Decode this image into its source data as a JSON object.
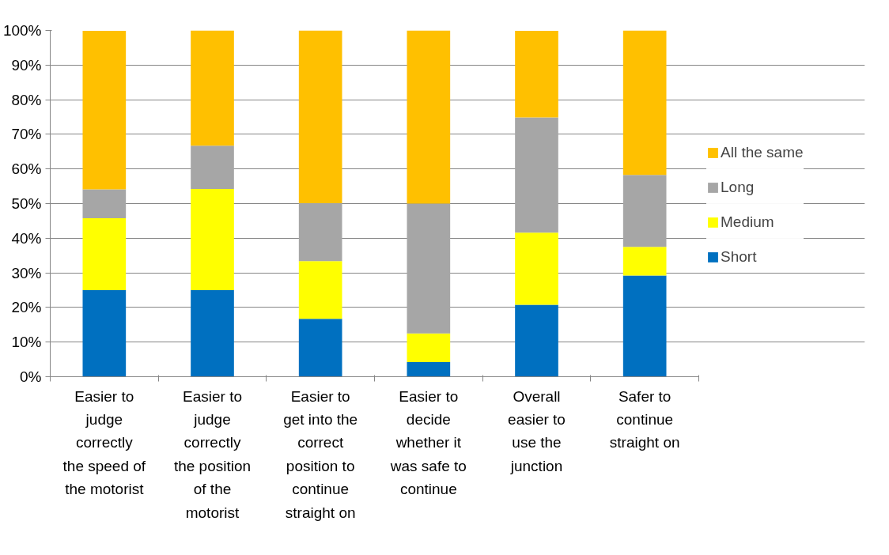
{
  "chart_data": {
    "type": "bar",
    "stacked": true,
    "categories": [
      "Easier to judge correctly the speed of the motorist",
      "Easier to judge correctly the position of the motorist",
      "Easier to get into the correct position to continue straight on",
      "Easier to decide whether it was safe to continue",
      "Overall easier to use the junction",
      "Safer to continue straight on"
    ],
    "series": [
      {
        "name": "Short",
        "color": "#0070c0",
        "values": [
          25,
          25,
          16.7,
          4.2,
          20.8,
          29.2
        ]
      },
      {
        "name": "Medium",
        "color": "#ffff00",
        "values": [
          20.8,
          29.2,
          16.7,
          8.3,
          20.8,
          8.3
        ]
      },
      {
        "name": "Long",
        "color": "#a6a6a6",
        "values": [
          8.3,
          12.5,
          16.7,
          37.5,
          33.3,
          20.8
        ]
      },
      {
        "name": "All the same",
        "color": "#ffc000",
        "values": [
          45.8,
          33.3,
          50,
          50,
          25,
          41.7
        ]
      }
    ],
    "ylim": [
      0,
      100
    ],
    "yticks": [
      {
        "value": 0,
        "label": "0%"
      },
      {
        "value": 10,
        "label": "10%"
      },
      {
        "value": 20,
        "label": "20%"
      },
      {
        "value": 30,
        "label": "30%"
      },
      {
        "value": 40,
        "label": "40%"
      },
      {
        "value": 50,
        "label": "50%"
      },
      {
        "value": 60,
        "label": "60%"
      },
      {
        "value": 70,
        "label": "70%"
      },
      {
        "value": 80,
        "label": "80%"
      },
      {
        "value": 90,
        "label": "90%"
      },
      {
        "value": 100,
        "label": "100%"
      }
    ],
    "grid": "y",
    "legend": "right"
  }
}
